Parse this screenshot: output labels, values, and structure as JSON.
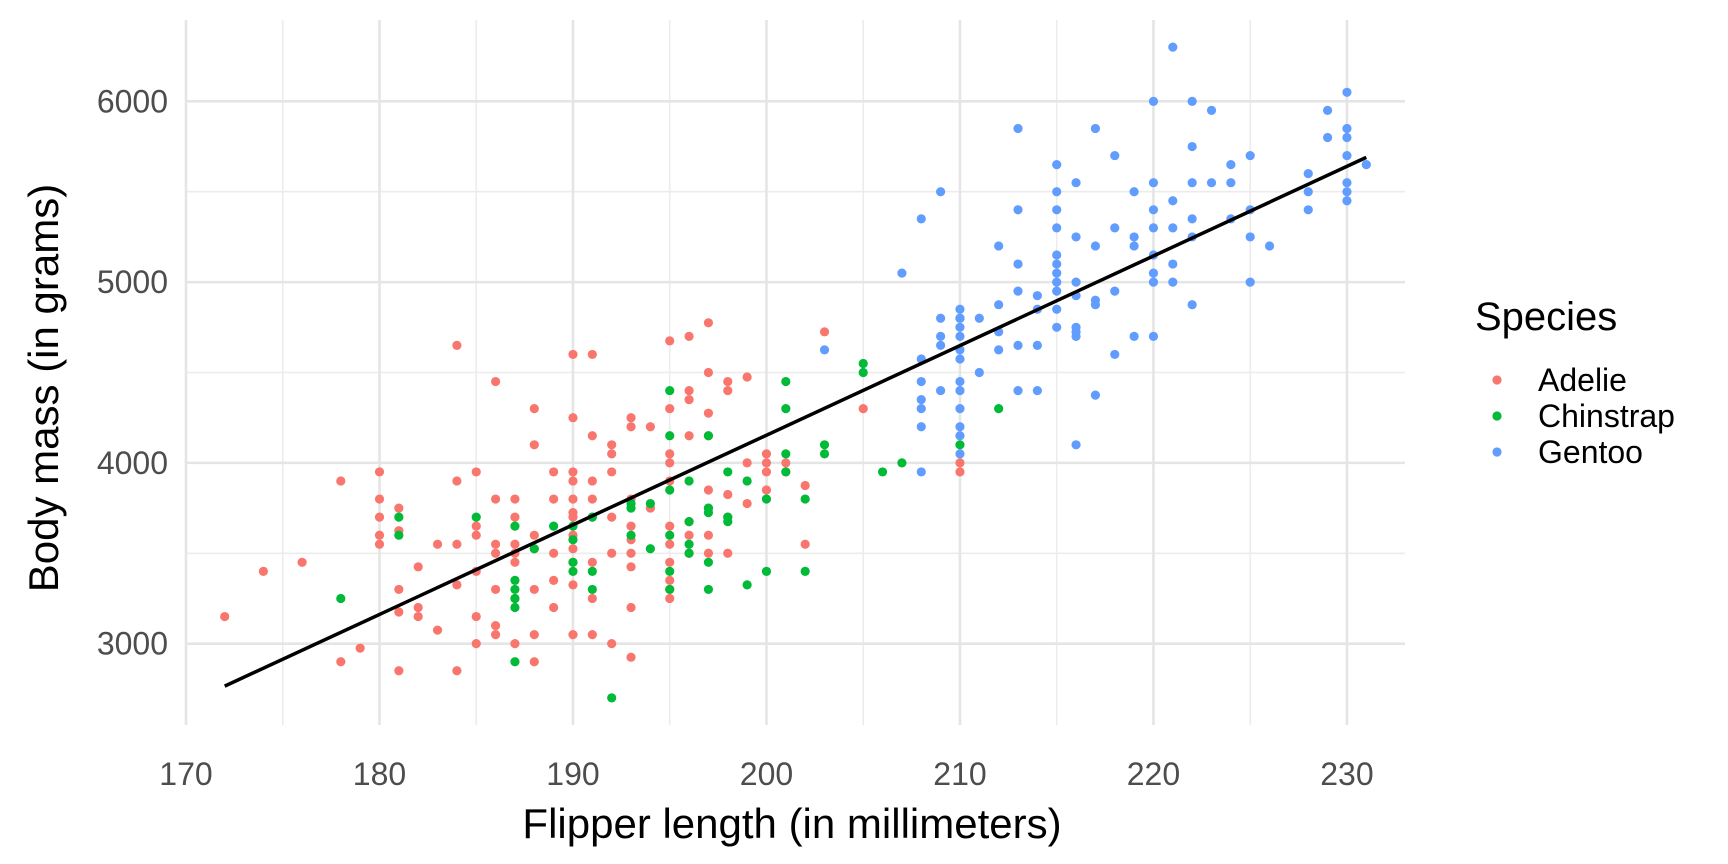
{
  "chart_data": {
    "type": "scatter",
    "xlabel": "Flipper length (in millimeters)",
    "ylabel": "Body mass (in grams)",
    "xlim": [
      170,
      233
    ],
    "ylim": [
      2550,
      6450
    ],
    "x_ticks": [
      170,
      180,
      190,
      200,
      210,
      220,
      230
    ],
    "y_ticks": [
      3000,
      4000,
      5000,
      6000
    ],
    "grid": true,
    "legend": {
      "title": "Species",
      "position": "right"
    },
    "trend_line": {
      "x": [
        172,
        231
      ],
      "y": [
        2765,
        5690
      ],
      "color": "#000000"
    },
    "series": [
      {
        "name": "Adelie",
        "color": "#F8766D",
        "points": [
          [
            172,
            3150
          ],
          [
            174,
            3400
          ],
          [
            176,
            3450
          ],
          [
            178,
            2900
          ],
          [
            178,
            3900
          ],
          [
            179,
            2975
          ],
          [
            180,
            3550
          ],
          [
            180,
            3600
          ],
          [
            180,
            3700
          ],
          [
            180,
            3800
          ],
          [
            180,
            3950
          ],
          [
            181,
            2850
          ],
          [
            181,
            3175
          ],
          [
            181,
            3300
          ],
          [
            181,
            3625
          ],
          [
            181,
            3750
          ],
          [
            182,
            3150
          ],
          [
            182,
            3200
          ],
          [
            182,
            3425
          ],
          [
            183,
            3075
          ],
          [
            183,
            3550
          ],
          [
            184,
            2850
          ],
          [
            184,
            3325
          ],
          [
            184,
            3550
          ],
          [
            184,
            3900
          ],
          [
            184,
            4650
          ],
          [
            185,
            3000
          ],
          [
            185,
            3150
          ],
          [
            185,
            3400
          ],
          [
            185,
            3600
          ],
          [
            185,
            3650
          ],
          [
            185,
            3950
          ],
          [
            186,
            3050
          ],
          [
            186,
            3100
          ],
          [
            186,
            3300
          ],
          [
            186,
            3500
          ],
          [
            186,
            3550
          ],
          [
            186,
            3800
          ],
          [
            186,
            4450
          ],
          [
            187,
            3000
          ],
          [
            187,
            3250
          ],
          [
            187,
            3450
          ],
          [
            187,
            3500
          ],
          [
            187,
            3550
          ],
          [
            187,
            3700
          ],
          [
            187,
            3800
          ],
          [
            188,
            2900
          ],
          [
            188,
            3050
          ],
          [
            188,
            3300
          ],
          [
            188,
            3525
          ],
          [
            188,
            3600
          ],
          [
            188,
            4100
          ],
          [
            188,
            4300
          ],
          [
            189,
            3200
          ],
          [
            189,
            3350
          ],
          [
            189,
            3500
          ],
          [
            189,
            3800
          ],
          [
            189,
            3950
          ],
          [
            190,
            3050
          ],
          [
            190,
            3325
          ],
          [
            190,
            3450
          ],
          [
            190,
            3525
          ],
          [
            190,
            3600
          ],
          [
            190,
            3700
          ],
          [
            190,
            3725
          ],
          [
            190,
            3800
          ],
          [
            190,
            3900
          ],
          [
            190,
            3950
          ],
          [
            190,
            4250
          ],
          [
            190,
            4600
          ],
          [
            191,
            3050
          ],
          [
            191,
            3250
          ],
          [
            191,
            3450
          ],
          [
            191,
            3700
          ],
          [
            191,
            3800
          ],
          [
            191,
            3900
          ],
          [
            191,
            4150
          ],
          [
            191,
            4600
          ],
          [
            192,
            3000
          ],
          [
            192,
            3500
          ],
          [
            192,
            3700
          ],
          [
            192,
            3950
          ],
          [
            192,
            4050
          ],
          [
            192,
            4100
          ],
          [
            193,
            2925
          ],
          [
            193,
            3200
          ],
          [
            193,
            3425
          ],
          [
            193,
            3500
          ],
          [
            193,
            3575
          ],
          [
            193,
            3650
          ],
          [
            193,
            3800
          ],
          [
            193,
            4200
          ],
          [
            193,
            4250
          ],
          [
            194,
            3750
          ],
          [
            194,
            4200
          ],
          [
            195,
            3250
          ],
          [
            195,
            3300
          ],
          [
            195,
            3350
          ],
          [
            195,
            3450
          ],
          [
            195,
            3550
          ],
          [
            195,
            3650
          ],
          [
            195,
            3900
          ],
          [
            195,
            4000
          ],
          [
            195,
            4050
          ],
          [
            195,
            4300
          ],
          [
            195,
            4675
          ],
          [
            196,
            3500
          ],
          [
            196,
            3600
          ],
          [
            196,
            3675
          ],
          [
            196,
            4150
          ],
          [
            196,
            4350
          ],
          [
            196,
            4400
          ],
          [
            196,
            4700
          ],
          [
            197,
            3500
          ],
          [
            197,
            3600
          ],
          [
            197,
            3750
          ],
          [
            197,
            3850
          ],
          [
            197,
            4150
          ],
          [
            197,
            4275
          ],
          [
            197,
            4500
          ],
          [
            197,
            4775
          ],
          [
            198,
            3500
          ],
          [
            198,
            3700
          ],
          [
            198,
            3825
          ],
          [
            198,
            4400
          ],
          [
            198,
            4450
          ],
          [
            199,
            3775
          ],
          [
            199,
            4000
          ],
          [
            199,
            4475
          ],
          [
            200,
            3850
          ],
          [
            200,
            3950
          ],
          [
            200,
            4000
          ],
          [
            200,
            4050
          ],
          [
            201,
            3950
          ],
          [
            201,
            4000
          ],
          [
            202,
            3550
          ],
          [
            202,
            3875
          ],
          [
            203,
            4725
          ],
          [
            205,
            4300
          ],
          [
            210,
            3950
          ],
          [
            210,
            4000
          ]
        ]
      },
      {
        "name": "Chinstrap",
        "color": "#00BA38",
        "points": [
          [
            178,
            3250
          ],
          [
            181,
            3600
          ],
          [
            181,
            3700
          ],
          [
            185,
            3700
          ],
          [
            187,
            2900
          ],
          [
            187,
            3200
          ],
          [
            187,
            3250
          ],
          [
            187,
            3300
          ],
          [
            187,
            3350
          ],
          [
            187,
            3650
          ],
          [
            188,
            3525
          ],
          [
            189,
            3650
          ],
          [
            190,
            3400
          ],
          [
            190,
            3450
          ],
          [
            190,
            3575
          ],
          [
            190,
            3650
          ],
          [
            191,
            3300
          ],
          [
            191,
            3400
          ],
          [
            191,
            3700
          ],
          [
            192,
            2700
          ],
          [
            193,
            3600
          ],
          [
            193,
            3750
          ],
          [
            193,
            3775
          ],
          [
            194,
            3525
          ],
          [
            194,
            3775
          ],
          [
            195,
            3300
          ],
          [
            195,
            3400
          ],
          [
            195,
            3600
          ],
          [
            195,
            3850
          ],
          [
            195,
            4150
          ],
          [
            195,
            4400
          ],
          [
            196,
            3500
          ],
          [
            196,
            3550
          ],
          [
            196,
            3675
          ],
          [
            196,
            3900
          ],
          [
            197,
            3300
          ],
          [
            197,
            3450
          ],
          [
            197,
            3725
          ],
          [
            197,
            3750
          ],
          [
            197,
            4150
          ],
          [
            198,
            3675
          ],
          [
            198,
            3700
          ],
          [
            198,
            3950
          ],
          [
            199,
            3325
          ],
          [
            199,
            3900
          ],
          [
            200,
            3400
          ],
          [
            200,
            3800
          ],
          [
            201,
            3950
          ],
          [
            201,
            4050
          ],
          [
            201,
            4300
          ],
          [
            201,
            4450
          ],
          [
            202,
            3400
          ],
          [
            202,
            3800
          ],
          [
            203,
            4050
          ],
          [
            203,
            4100
          ],
          [
            205,
            4500
          ],
          [
            205,
            4550
          ],
          [
            206,
            3950
          ],
          [
            207,
            4000
          ],
          [
            210,
            4100
          ],
          [
            210,
            4800
          ],
          [
            212,
            4300
          ]
        ]
      },
      {
        "name": "Gentoo",
        "color": "#619CFF",
        "points": [
          [
            203,
            4625
          ],
          [
            207,
            5050
          ],
          [
            208,
            3950
          ],
          [
            208,
            4200
          ],
          [
            208,
            4300
          ],
          [
            208,
            4350
          ],
          [
            208,
            4450
          ],
          [
            208,
            4575
          ],
          [
            208,
            5350
          ],
          [
            209,
            4400
          ],
          [
            209,
            4650
          ],
          [
            209,
            4700
          ],
          [
            209,
            4800
          ],
          [
            209,
            5500
          ],
          [
            210,
            4050
          ],
          [
            210,
            4150
          ],
          [
            210,
            4200
          ],
          [
            210,
            4300
          ],
          [
            210,
            4400
          ],
          [
            210,
            4450
          ],
          [
            210,
            4575
          ],
          [
            210,
            4625
          ],
          [
            210,
            4700
          ],
          [
            210,
            4750
          ],
          [
            210,
            4800
          ],
          [
            210,
            4850
          ],
          [
            211,
            4500
          ],
          [
            211,
            4800
          ],
          [
            212,
            4625
          ],
          [
            212,
            4725
          ],
          [
            212,
            4875
          ],
          [
            212,
            5200
          ],
          [
            213,
            4400
          ],
          [
            213,
            4650
          ],
          [
            213,
            4950
          ],
          [
            213,
            5100
          ],
          [
            213,
            5400
          ],
          [
            213,
            5850
          ],
          [
            214,
            4400
          ],
          [
            214,
            4650
          ],
          [
            214,
            4850
          ],
          [
            214,
            4925
          ],
          [
            215,
            4750
          ],
          [
            215,
            4850
          ],
          [
            215,
            4950
          ],
          [
            215,
            5000
          ],
          [
            215,
            5050
          ],
          [
            215,
            5100
          ],
          [
            215,
            5150
          ],
          [
            215,
            5300
          ],
          [
            215,
            5400
          ],
          [
            215,
            5500
          ],
          [
            215,
            5650
          ],
          [
            216,
            4100
          ],
          [
            216,
            4700
          ],
          [
            216,
            4725
          ],
          [
            216,
            4750
          ],
          [
            216,
            4925
          ],
          [
            216,
            5000
          ],
          [
            216,
            5250
          ],
          [
            216,
            5550
          ],
          [
            217,
            4375
          ],
          [
            217,
            4875
          ],
          [
            217,
            4900
          ],
          [
            217,
            5200
          ],
          [
            217,
            5850
          ],
          [
            218,
            4600
          ],
          [
            218,
            4950
          ],
          [
            218,
            5300
          ],
          [
            218,
            5700
          ],
          [
            219,
            4700
          ],
          [
            219,
            5200
          ],
          [
            219,
            5250
          ],
          [
            219,
            5500
          ],
          [
            220,
            4700
          ],
          [
            220,
            5000
          ],
          [
            220,
            5050
          ],
          [
            220,
            5150
          ],
          [
            220,
            5300
          ],
          [
            220,
            5400
          ],
          [
            220,
            5550
          ],
          [
            220,
            6000
          ],
          [
            221,
            5000
          ],
          [
            221,
            5100
          ],
          [
            221,
            5300
          ],
          [
            221,
            5450
          ],
          [
            221,
            6300
          ],
          [
            222,
            4875
          ],
          [
            222,
            5250
          ],
          [
            222,
            5350
          ],
          [
            222,
            5550
          ],
          [
            222,
            5750
          ],
          [
            222,
            6000
          ],
          [
            223,
            5550
          ],
          [
            223,
            5950
          ],
          [
            224,
            5350
          ],
          [
            224,
            5550
          ],
          [
            224,
            5650
          ],
          [
            225,
            5000
          ],
          [
            225,
            5250
          ],
          [
            225,
            5400
          ],
          [
            225,
            5700
          ],
          [
            226,
            5200
          ],
          [
            228,
            5400
          ],
          [
            228,
            5500
          ],
          [
            228,
            5600
          ],
          [
            229,
            5800
          ],
          [
            229,
            5950
          ],
          [
            230,
            5450
          ],
          [
            230,
            5500
          ],
          [
            230,
            5550
          ],
          [
            230,
            5700
          ],
          [
            230,
            5800
          ],
          [
            230,
            5850
          ],
          [
            230,
            6050
          ],
          [
            231,
            5650
          ]
        ]
      }
    ]
  }
}
